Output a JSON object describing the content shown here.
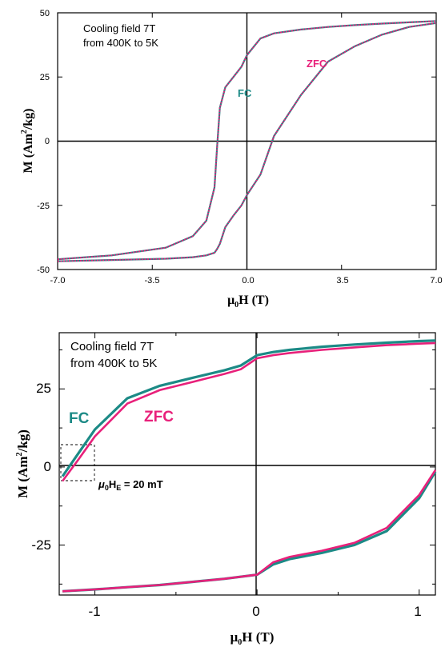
{
  "colors": {
    "fc": "#1c8a86",
    "zfc": "#e8207a",
    "axis": "#000000"
  },
  "chart_data": [
    {
      "type": "line",
      "xlabel_main": "μ",
      "xlabel_sub": "0",
      "xlabel_tail": "H (T)",
      "ylabel_main": "M (Am",
      "ylabel_sup": "2",
      "ylabel_tail": "/kg)",
      "xlim": [
        -7.0,
        7.0
      ],
      "ylim": [
        -50,
        50
      ],
      "x_ticks": [
        "-7.0",
        "-3.5",
        "0.0",
        "3.5",
        "7.0"
      ],
      "y_ticks": [
        "50",
        "25",
        "0",
        "-25",
        "-50"
      ],
      "annotation_line1": "Cooling field 7T",
      "annotation_line2": "from 400K to 5K",
      "series": [
        {
          "name": "FC",
          "x": [
            -7,
            -5,
            -3,
            -2,
            -1.5,
            -1.2,
            -1.1,
            -1.0,
            -0.8,
            -0.5,
            -0.2,
            0,
            0.5,
            1,
            2,
            3,
            4,
            5,
            6,
            7
          ],
          "descending_y": [
            -46,
            -44.5,
            -41.5,
            -37,
            -31,
            -18,
            -2,
            13,
            21,
            25,
            29,
            33.5,
            40,
            42,
            43.5,
            44.5,
            45.2,
            45.8,
            46.3,
            46.8
          ],
          "ascending_y": [
            -46.8,
            -46.3,
            -45.8,
            -45.2,
            -44.5,
            -43.5,
            -42,
            -40,
            -33.5,
            -29,
            -25,
            -21,
            -13,
            2,
            18,
            31,
            37,
            41.5,
            44.5,
            46
          ]
        },
        {
          "name": "ZFC",
          "x": [
            -7,
            -5,
            -3,
            -2,
            -1.5,
            -1.2,
            -1.1,
            -1.0,
            -0.8,
            -0.5,
            -0.2,
            0,
            0.5,
            1,
            2,
            3,
            4,
            5,
            6,
            7
          ],
          "descending_y": [
            -46,
            -44.5,
            -41.5,
            -37,
            -31,
            -18,
            -2,
            13,
            21,
            25,
            29,
            33.5,
            40,
            42,
            43.5,
            44.5,
            45.2,
            45.8,
            46.3,
            46.8
          ],
          "ascending_y": [
            -46.8,
            -46.3,
            -45.8,
            -45.2,
            -44.5,
            -43.5,
            -42,
            -40,
            -33.5,
            -29,
            -25,
            -21,
            -13,
            2,
            18,
            31,
            37,
            41.5,
            44.5,
            46
          ]
        }
      ]
    },
    {
      "type": "line",
      "xlabel_main": "μ",
      "xlabel_sub": "0",
      "xlabel_tail": "H (T)",
      "ylabel_main": "M (Am",
      "ylabel_sup": "2",
      "ylabel_tail": "/kg)",
      "xlim": [
        -1.22,
        1.1
      ],
      "ylim": [
        -41,
        43
      ],
      "x_ticks": [
        "-1",
        "0",
        "1"
      ],
      "y_ticks": [
        "25",
        "0",
        "-25"
      ],
      "annotation_line1": "Cooling field 7T",
      "annotation_line2": "from 400K to 5K",
      "exchange_bias_main": "μ",
      "exchange_bias_sub0": "0",
      "exchange_bias_h": "H",
      "exchange_bias_subE": "E",
      "exchange_bias_tail": " = 20 mT",
      "series": [
        {
          "name": "FC",
          "desc_x": [
            1.1,
            1.0,
            0.8,
            0.6,
            0.4,
            0.2,
            0.1,
            0.0,
            -0.1,
            -0.2,
            -0.4,
            -0.6,
            -0.8,
            -1.0,
            -1.1,
            -1.2
          ],
          "desc_y": [
            40.5,
            40.3,
            39.8,
            39.2,
            38.5,
            37.5,
            36.8,
            35.8,
            32.5,
            31,
            28.5,
            26,
            22,
            12,
            4.5,
            -3
          ],
          "asc_x": [
            -1.2,
            -1.0,
            -0.8,
            -0.6,
            -0.4,
            -0.2,
            0.0,
            0.1,
            0.2,
            0.4,
            0.6,
            0.8,
            1.0,
            1.1
          ],
          "asc_y": [
            -39.8,
            -39.2,
            -38.5,
            -37.8,
            -36.8,
            -35.8,
            -34.5,
            -31.2,
            -29.5,
            -27.5,
            -25,
            -20.5,
            -10,
            -1.5
          ]
        },
        {
          "name": "ZFC",
          "desc_x": [
            1.1,
            1.0,
            0.8,
            0.6,
            0.4,
            0.2,
            0.1,
            0.0,
            -0.1,
            -0.2,
            -0.4,
            -0.6,
            -0.8,
            -1.0,
            -1.1,
            -1.2
          ],
          "desc_y": [
            39.7,
            39.5,
            39,
            38.3,
            37.5,
            36.5,
            35.8,
            34.8,
            31.3,
            29.8,
            27.2,
            24.6,
            20.3,
            9.8,
            2.5,
            -4.5
          ],
          "asc_x": [
            -1.2,
            -1.0,
            -0.8,
            -0.6,
            -0.4,
            -0.2,
            0.0,
            0.1,
            0.2,
            0.4,
            0.6,
            0.8,
            1.0,
            1.1
          ],
          "asc_y": [
            -39.8,
            -39.2,
            -38.5,
            -37.8,
            -36.8,
            -35.8,
            -34.5,
            -30.5,
            -28.8,
            -26.8,
            -24.3,
            -19.5,
            -9,
            -1
          ]
        }
      ]
    }
  ]
}
